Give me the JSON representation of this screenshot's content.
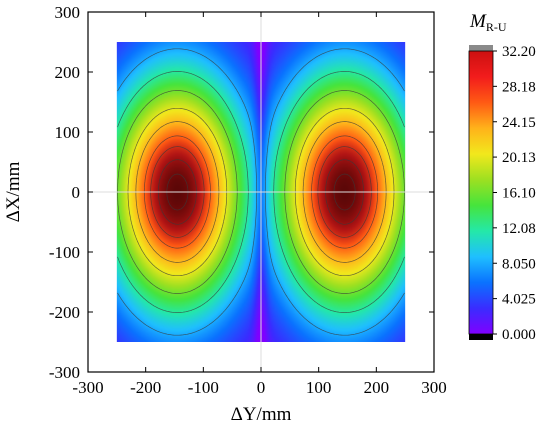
{
  "chart_data": {
    "type": "heatmap",
    "title": "",
    "xlabel": "ΔY/mm",
    "ylabel": "ΔX/mm",
    "xlim": [
      -300,
      300
    ],
    "ylim": [
      -300,
      300
    ],
    "x_ticks": [
      "-300",
      "-200",
      "-100",
      "0",
      "100",
      "200",
      "300"
    ],
    "y_ticks": [
      "300",
      "200",
      "100",
      "0",
      "-100",
      "-200",
      "-300"
    ],
    "data_extent": {
      "x": [
        -250,
        250
      ],
      "y": [
        -250,
        250
      ]
    },
    "field": {
      "description_of_values": "two elliptical maxima symmetric about ΔY=0",
      "peaks": [
        {
          "x": -145,
          "y": 0,
          "value": 32.2
        },
        {
          "x": 145,
          "y": 0,
          "value": 32.2
        }
      ],
      "minimum": {
        "x": 0,
        "value": 0.0
      }
    },
    "colorbar": {
      "title": "M",
      "title_subscript": "R-U",
      "min": 0.0,
      "max": 32.2,
      "tick_labels": [
        "32.20",
        "28.18",
        "24.15",
        "20.13",
        "16.10",
        "12.08",
        "8.050",
        "4.025",
        "0.000"
      ],
      "tick_values": [
        32.2,
        28.18,
        24.15,
        20.13,
        16.1,
        12.08,
        8.05,
        4.025,
        0.0
      ],
      "colors": [
        "#8000ff",
        "#3a2cff",
        "#0a72ff",
        "#1fbfff",
        "#24e8a8",
        "#46e43c",
        "#9de021",
        "#f2e81c",
        "#ffb21a",
        "#ff5a14",
        "#f21c1c",
        "#cc1010"
      ],
      "over_color": "#8a8a8a",
      "under_color": "#000000"
    },
    "contour_levels": [
      8,
      12,
      16,
      20,
      23,
      26,
      28,
      30,
      31.5
    ]
  }
}
